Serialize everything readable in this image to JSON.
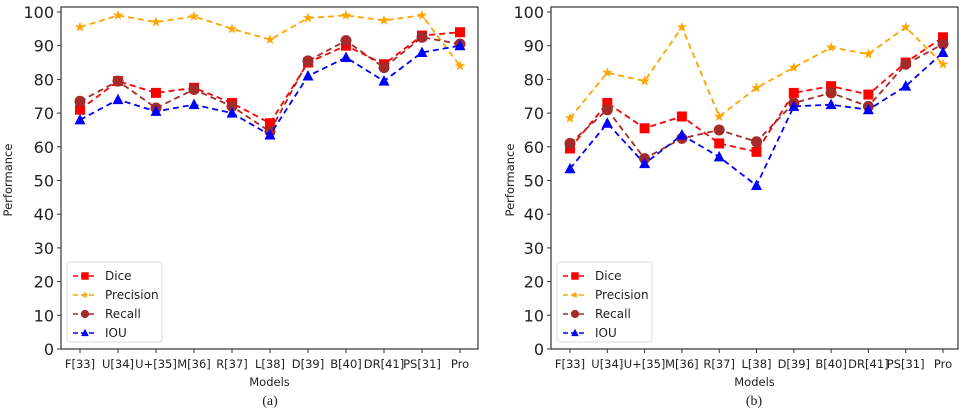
{
  "chart_data": [
    {
      "type": "line",
      "caption": "(a)",
      "xlabel": "Models",
      "ylabel": "Performance",
      "ylim": [
        0,
        100
      ],
      "yticks": [
        0,
        10,
        20,
        30,
        40,
        50,
        60,
        70,
        80,
        90,
        100
      ],
      "categories": [
        "F[33]",
        "U[34]",
        "U+[35]",
        "M[36]",
        "R[37]",
        "L[38]",
        "D[39]",
        "B[40]",
        "DR[41]",
        "PS[31]",
        "Pro"
      ],
      "legend_position": "lower-left",
      "series": [
        {
          "name": "Dice",
          "color": "#ff0000",
          "marker": "square",
          "values": [
            71,
            79.5,
            76,
            77.5,
            73,
            67,
            85,
            90,
            84.5,
            93,
            94
          ]
        },
        {
          "name": "Precision",
          "color": "#ffa500",
          "marker": "star",
          "values": [
            95.5,
            99,
            97,
            98.7,
            95,
            91.8,
            98.2,
            99,
            97.5,
            99,
            84
          ]
        },
        {
          "name": "Recall",
          "color": "#a52a2a",
          "marker": "circle",
          "values": [
            73.5,
            79.5,
            71.5,
            77,
            72,
            64.5,
            85.5,
            91.5,
            83.5,
            92.5,
            90.5
          ]
        },
        {
          "name": "IOU",
          "color": "#0000ff",
          "marker": "triangle",
          "values": [
            68,
            74,
            70.5,
            72.5,
            70,
            63.5,
            81,
            86.5,
            79.5,
            88,
            90
          ]
        }
      ]
    },
    {
      "type": "line",
      "caption": "(b)",
      "xlabel": "Models",
      "ylabel": "Performance",
      "ylim": [
        0,
        100
      ],
      "yticks": [
        0,
        10,
        20,
        30,
        40,
        50,
        60,
        70,
        80,
        90,
        100
      ],
      "categories": [
        "F[33]",
        "U[34]",
        "U+[35]",
        "M[36]",
        "R[37]",
        "L[38]",
        "D[39]",
        "B[40]",
        "DR[41]",
        "PS[31]",
        "Pro"
      ],
      "legend_position": "lower-left",
      "series": [
        {
          "name": "Dice",
          "color": "#ff0000",
          "marker": "square",
          "values": [
            59.5,
            73,
            65.5,
            69,
            61,
            58.5,
            76,
            78,
            75.5,
            85,
            92.5
          ]
        },
        {
          "name": "Precision",
          "color": "#ffa500",
          "marker": "star",
          "values": [
            68.5,
            82,
            79.5,
            95.5,
            69,
            77.5,
            83.5,
            89.5,
            87.5,
            95.5,
            84.5
          ]
        },
        {
          "name": "Recall",
          "color": "#a52a2a",
          "marker": "circle",
          "values": [
            61,
            71,
            56.5,
            62.5,
            65,
            61.5,
            73,
            76,
            72,
            84.5,
            90.5
          ]
        },
        {
          "name": "IOU",
          "color": "#0000ff",
          "marker": "triangle",
          "values": [
            53.5,
            67,
            55,
            63.5,
            57,
            48.5,
            72,
            72.5,
            71,
            78,
            88
          ]
        }
      ]
    }
  ]
}
